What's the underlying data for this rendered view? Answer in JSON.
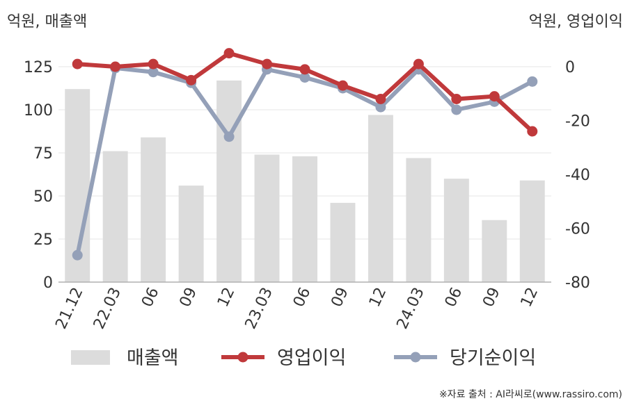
{
  "chart_data": {
    "type": "bar+line",
    "categories": [
      "21.12",
      "22.03",
      "06",
      "09",
      "12",
      "23.03",
      "06",
      "09",
      "12",
      "24.03",
      "06",
      "09",
      "12"
    ],
    "left_axis": {
      "label": "억원, 매출액",
      "range": [
        0,
        125
      ],
      "ticks": [
        0,
        25,
        50,
        75,
        100,
        125
      ]
    },
    "right_axis": {
      "label": "억원, 영업이익",
      "range": [
        -80,
        0
      ],
      "ticks": [
        0,
        -20,
        -40,
        -60,
        -80
      ]
    },
    "grid": true,
    "legend_position": "bottom",
    "series": [
      {
        "name": "매출액",
        "type": "bar",
        "axis": "left",
        "color": "#dcdcdc",
        "values": [
          112,
          76,
          84,
          56,
          117,
          74,
          73,
          46,
          97,
          72,
          60,
          36,
          59
        ]
      },
      {
        "name": "영업이익",
        "type": "line",
        "axis": "right",
        "color": "#c0393b",
        "values": [
          1,
          0,
          1,
          -5,
          5,
          1,
          -1,
          -7,
          -12,
          1,
          -12,
          -11,
          -24
        ]
      },
      {
        "name": "당기순이익",
        "type": "line",
        "axis": "right",
        "color": "#94a0b8",
        "values": [
          -70,
          -0.5,
          -2,
          -6,
          -26,
          -1,
          -4,
          -8,
          -15,
          -1,
          -16,
          -13,
          -5.5
        ]
      }
    ],
    "source": "※자료 출처 : AI라씨로(www.rassiro.com)"
  }
}
